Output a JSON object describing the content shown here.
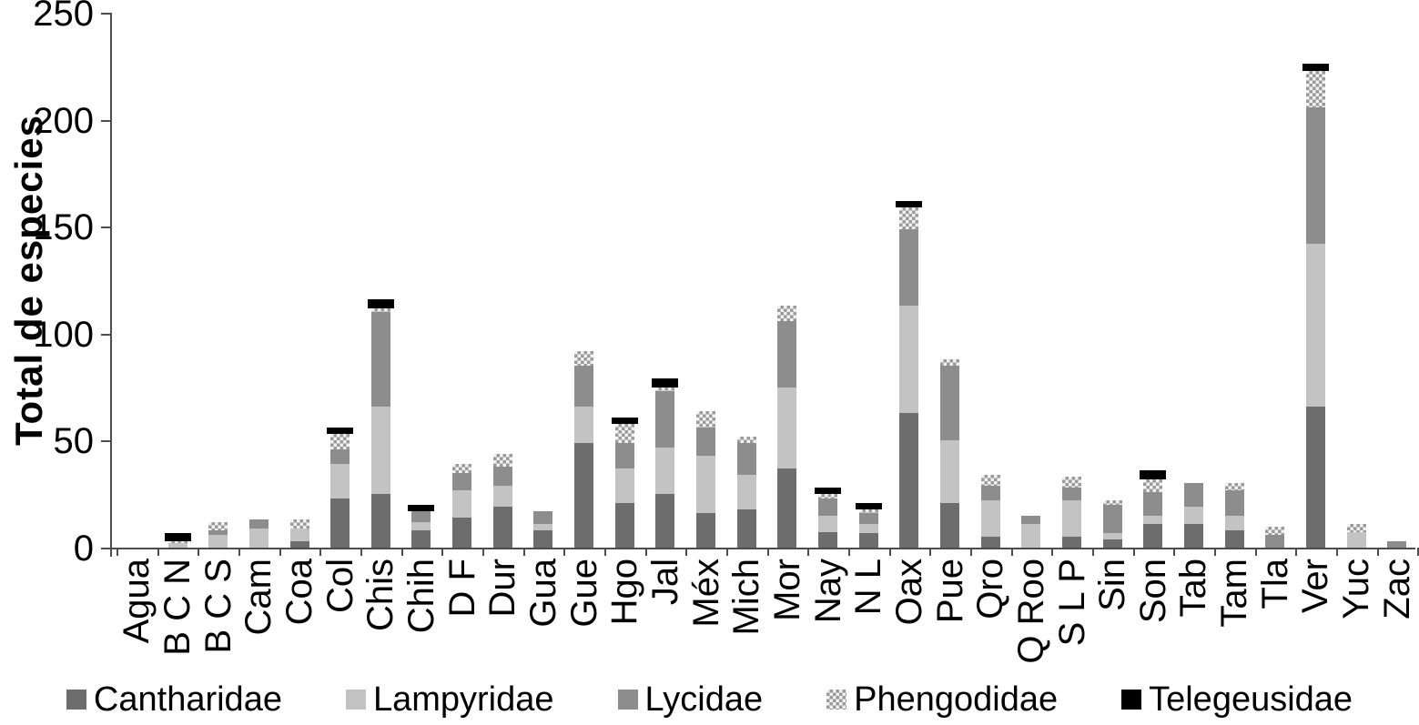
{
  "chart_data": {
    "type": "bar",
    "stacked": true,
    "title": "",
    "xlabel": "",
    "ylabel": "Total de especies",
    "ylim": [
      0,
      250
    ],
    "yticks": [
      0,
      50,
      100,
      150,
      200,
      250
    ],
    "grid": false,
    "legend_position": "bottom",
    "categories": [
      "Agua",
      "B C N",
      "B C S",
      "Cam",
      "Coa",
      "Col",
      "Chis",
      "Chih",
      "D F",
      "Dur",
      "Gua",
      "Gue",
      "Hgo",
      "Jal",
      "Méx",
      "Mich",
      "Mor",
      "Nay",
      "N L",
      "Oax",
      "Pue",
      "Qro",
      "Q Roo",
      "S L P",
      "Sin",
      "Son",
      "Tab",
      "Tam",
      "Tla",
      "Ver",
      "Yuc",
      "Zac"
    ],
    "series": [
      {
        "name": "Cantharidae",
        "color": "#6d6d6d",
        "pattern": "solid",
        "cap": false,
        "values": [
          0,
          0,
          0,
          0,
          3,
          23,
          25,
          8,
          14,
          19,
          8,
          49,
          21,
          25,
          16,
          18,
          37,
          7,
          7,
          63,
          21,
          5,
          0,
          5,
          4,
          11,
          11,
          8,
          0,
          66,
          0,
          0
        ]
      },
      {
        "name": "Lampyridae",
        "color": "#c3c3c3",
        "pattern": "solid",
        "cap": false,
        "values": [
          0,
          2,
          6,
          9,
          6,
          16,
          41,
          4,
          13,
          10,
          3,
          17,
          16,
          22,
          27,
          16,
          38,
          8,
          4,
          50,
          29,
          17,
          11,
          17,
          3,
          4,
          8,
          7,
          0,
          76,
          7,
          0
        ]
      },
      {
        "name": "Lycidae",
        "color": "#8d8d8d",
        "pattern": "solid",
        "cap": false,
        "values": [
          0,
          0,
          2,
          4,
          0,
          7,
          44,
          5,
          8,
          9,
          6,
          19,
          12,
          26,
          13,
          15,
          31,
          8,
          5,
          36,
          35,
          7,
          4,
          6,
          13,
          11,
          11,
          12,
          6,
          64,
          0,
          3
        ]
      },
      {
        "name": "Phengodidae",
        "color": "#9a9a9a",
        "pattern": "checker",
        "cap": false,
        "values": [
          0,
          1,
          4,
          0,
          4,
          7,
          2,
          0,
          4,
          6,
          0,
          7,
          9,
          2,
          8,
          3,
          7,
          2,
          2,
          10,
          3,
          5,
          0,
          5,
          2,
          6,
          0,
          3,
          4,
          17,
          4,
          0
        ]
      },
      {
        "name": "Telegeusidae",
        "color": "#000000",
        "pattern": "solid",
        "cap": true,
        "values": [
          0,
          4,
          0,
          0,
          0,
          3,
          4,
          3,
          0,
          0,
          0,
          0,
          3,
          4,
          0,
          0,
          0,
          3,
          3,
          3,
          0,
          0,
          0,
          0,
          0,
          4,
          0,
          0,
          0,
          3,
          0,
          0
        ]
      }
    ],
    "totals": [
      0,
      7,
      12,
      13,
      13,
      56,
      116,
      20,
      39,
      44,
      17,
      92,
      61,
      79,
      64,
      52,
      113,
      28,
      21,
      162,
      88,
      34,
      15,
      33,
      22,
      36,
      30,
      30,
      10,
      226,
      11,
      3
    ]
  }
}
